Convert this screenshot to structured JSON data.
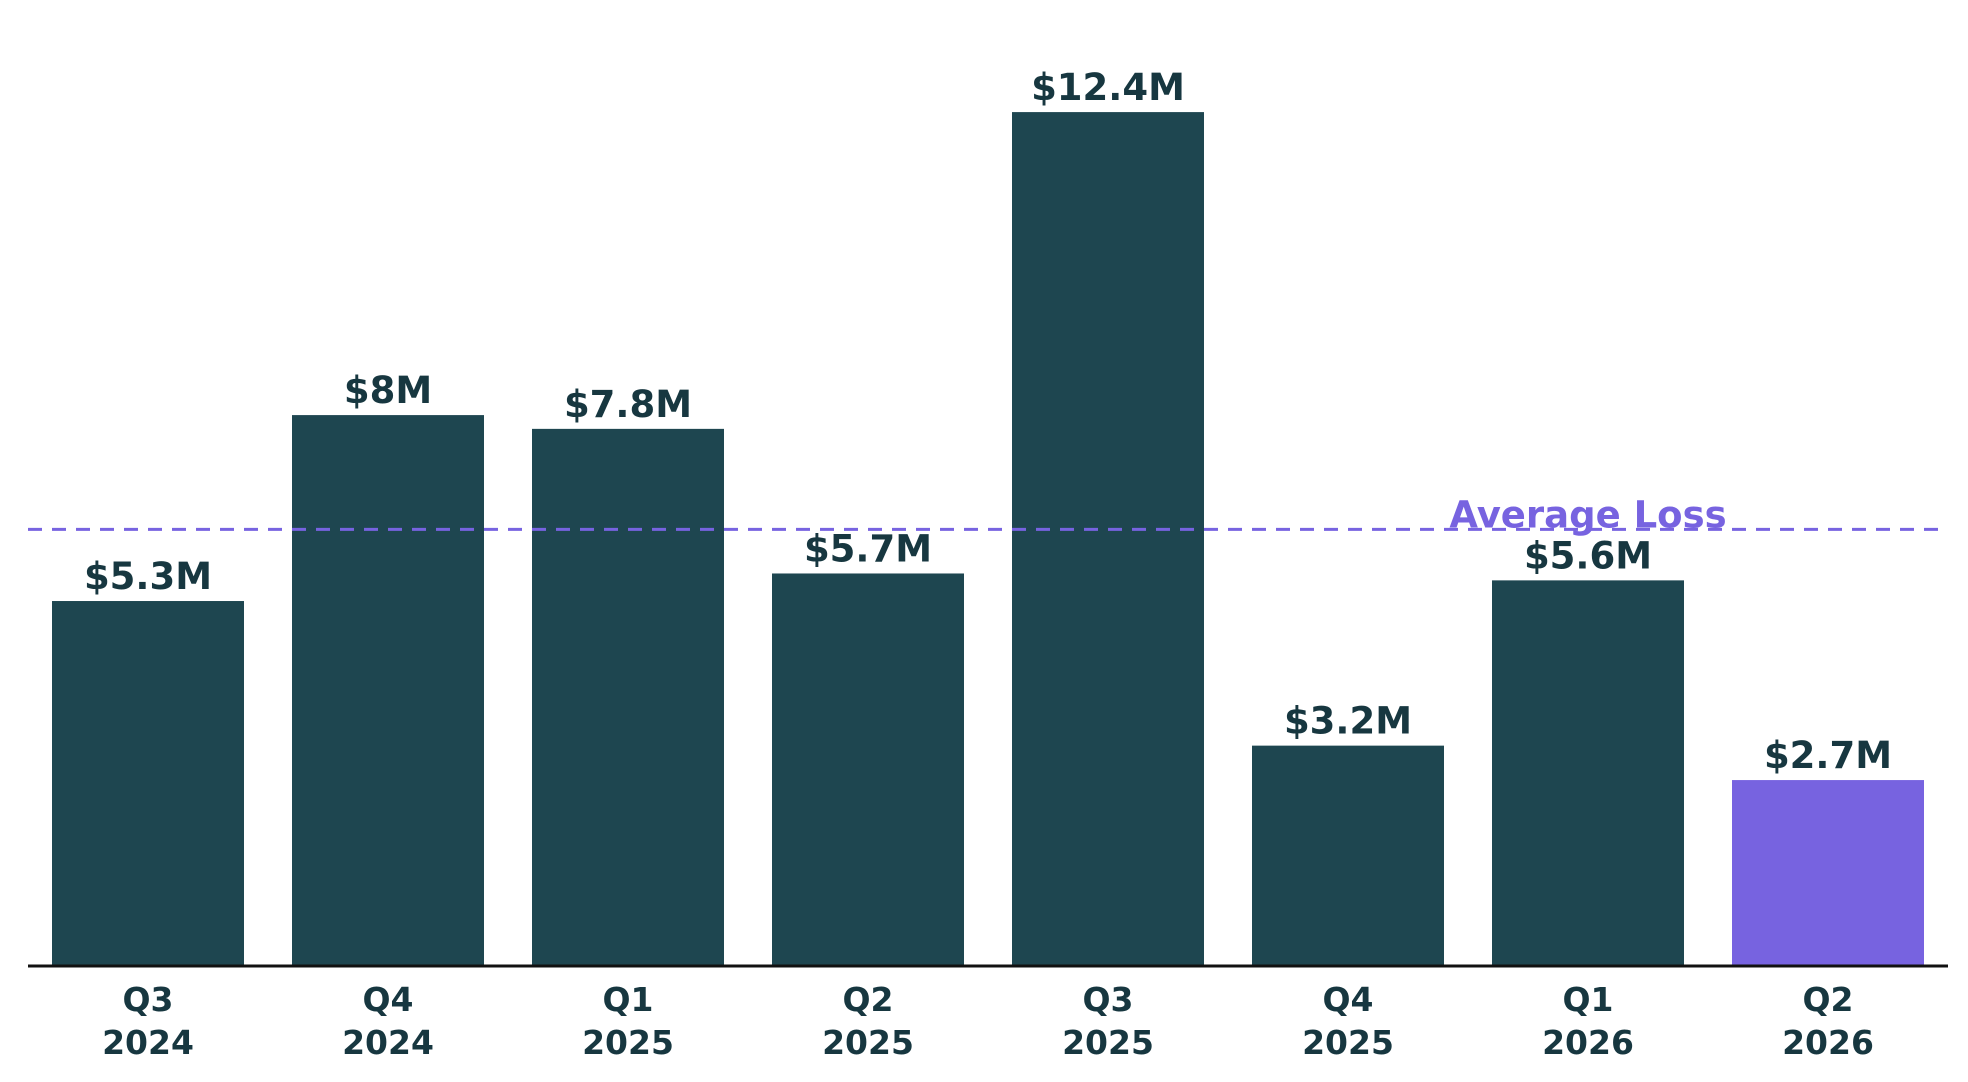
{
  "chart_data": {
    "type": "bar",
    "categories": [
      [
        "Q3",
        "2024"
      ],
      [
        "Q4",
        "2024"
      ],
      [
        "Q1",
        "2025"
      ],
      [
        "Q2",
        "2025"
      ],
      [
        "Q3",
        "2025"
      ],
      [
        "Q4",
        "2025"
      ],
      [
        "Q1",
        "2026"
      ],
      [
        "Q2",
        "2026"
      ]
    ],
    "values": [
      5.3,
      8.0,
      7.8,
      5.7,
      12.4,
      3.2,
      5.6,
      2.7
    ],
    "data_labels": [
      "$5.3M",
      "$8M",
      "$7.8M",
      "$5.7M",
      "$12.4M",
      "$3.2M",
      "$5.6M",
      "$2.7M"
    ],
    "unit": "$M",
    "ylim": [
      0,
      13.2
    ],
    "grid": false,
    "average_line": {
      "label": "Average Loss",
      "value": 6.34
    },
    "colors": {
      "bar": "#1e4650",
      "highlight_bar": "#7763e0",
      "average_line": "#7763e0",
      "axis": "#111111",
      "text": "#173740"
    },
    "highlight_index": 7
  }
}
